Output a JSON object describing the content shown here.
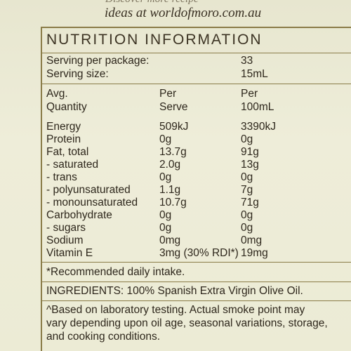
{
  "top_cut_text": "Discover more recipe",
  "tagline": "ideas at worldofmoro.com.au",
  "title": "NUTRITION INFORMATION",
  "serving": [
    {
      "label": "Serving per package:",
      "value": "33"
    },
    {
      "label": "Serving size:",
      "value": "15mL"
    }
  ],
  "headers": {
    "col1": [
      "Avg.",
      "Quantity"
    ],
    "col2": [
      "Per",
      "Serve"
    ],
    "col3": [
      "Per",
      "100mL"
    ]
  },
  "rows": [
    {
      "name": "Energy",
      "serve": "509kJ",
      "per100": "3390kJ"
    },
    {
      "name": "Protein",
      "serve": "0g",
      "per100": "0g"
    },
    {
      "name": "Fat, total",
      "serve": "13.7g",
      "per100": "91g"
    },
    {
      "name": " - saturated",
      "serve": "2.0g",
      "per100": "13g"
    },
    {
      "name": " - trans",
      "serve": "0g",
      "per100": "0g"
    },
    {
      "name": " - polyunsaturated",
      "serve": "1.1g",
      "per100": "7g"
    },
    {
      "name": " - monounsaturated",
      "serve": "10.7g",
      "per100": "71g"
    },
    {
      "name": "Carbohydrate",
      "serve": "0g",
      "per100": "0g"
    },
    {
      "name": " - sugars",
      "serve": "0g",
      "per100": "0g"
    },
    {
      "name": "Sodium",
      "serve": "0mg",
      "per100": "0mg"
    },
    {
      "name": "Vitamin E",
      "serve": "3mg (30% RDI*)",
      "per100": "19mg"
    }
  ],
  "footnote_rdi": "*Recommended daily intake.",
  "ingredients": "INGREDIENTS: 100% Spanish Extra Virgin Olive Oil.",
  "smoke_note": [
    "^Based on laboratory testing. Actual smoke point may",
    "vary depending upon oil age, seasonal variations, storage,",
    "and cooking conditions."
  ]
}
